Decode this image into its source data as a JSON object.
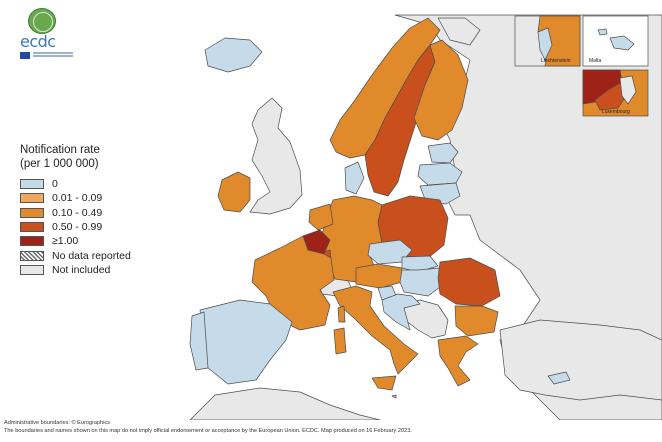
{
  "legend": {
    "title_line1": "Notification rate",
    "title_line2": "(per 1 000 000)",
    "items": [
      {
        "label": "0",
        "color": "#c6dbe9"
      },
      {
        "label": "0.01 - 0.09",
        "color": "#f0a85e"
      },
      {
        "label": "0.10 - 0.49",
        "color": "#e08a2c"
      },
      {
        "label": "0.50 - 0.99",
        "color": "#c9501c"
      },
      {
        "label": "≥1.00",
        "color": "#9e2218"
      },
      {
        "label": "No data reported",
        "pattern": "hatched"
      },
      {
        "label": "Not included",
        "color": "#e8e8e8"
      }
    ]
  },
  "logo": {
    "text": "ecdc"
  },
  "insets": {
    "liechtenstein": "Liechtenstein",
    "malta": "Malta",
    "luxembourg": "Luxembourg"
  },
  "colors": {
    "sea": "#ffffff",
    "not_included": "#e8e8e8",
    "border": "#4d4d4d"
  },
  "footer": {
    "line1": "Administrative boundaries: © Eurographics",
    "line2": "The boundaries and names shown on this map do not imply official endorsement or acceptance by the European Union. ECDC. Map produced on 16 February 2023."
  }
}
